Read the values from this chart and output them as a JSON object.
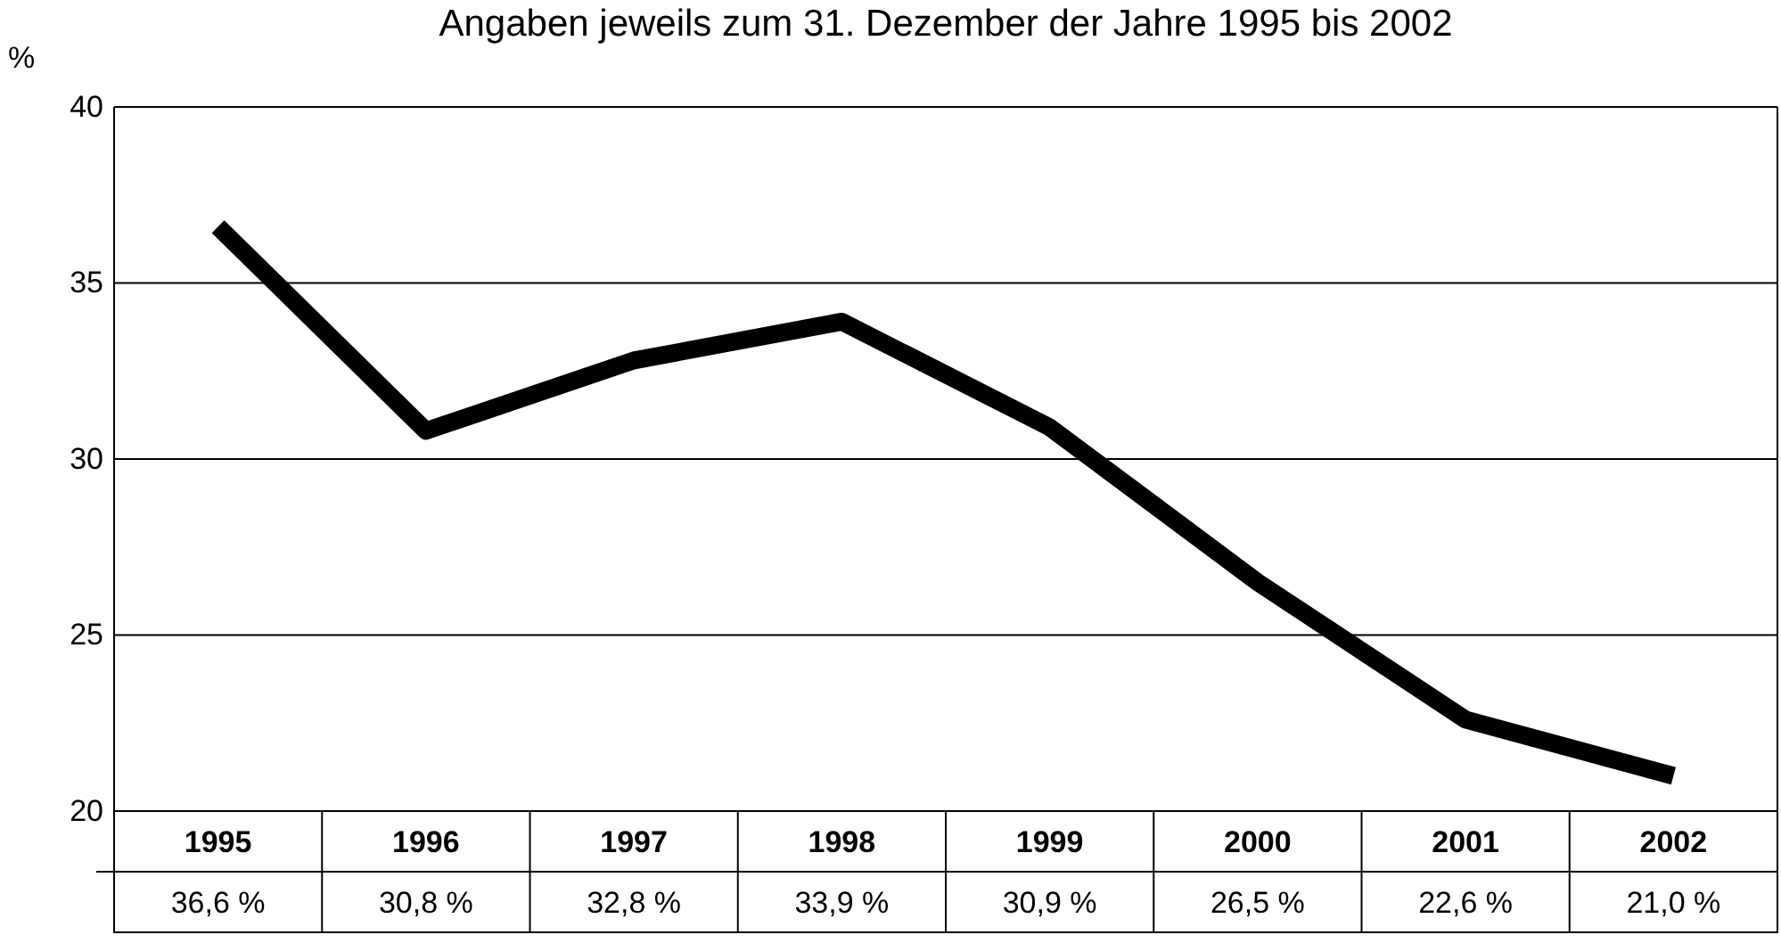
{
  "chart_data": {
    "type": "line",
    "title": "Angaben jeweils zum 31. Dezember der Jahre 1995 bis 2002",
    "ylabel": "%",
    "categories": [
      "1995",
      "1996",
      "1997",
      "1998",
      "1999",
      "2000",
      "2001",
      "2002"
    ],
    "series": [
      {
        "color": "#000000",
        "values": [
          36.6,
          30.8,
          32.8,
          33.9,
          30.9,
          26.5,
          22.6,
          21.0
        ]
      }
    ],
    "value_labels": [
      "36,6 %",
      "30,8 %",
      "32,8 %",
      "33,9 %",
      "30,9 %",
      "26,5 %",
      "22,6 %",
      "21,0 %"
    ],
    "ylim": [
      20,
      40
    ],
    "yticks": [
      20,
      25,
      30,
      35,
      40
    ],
    "grid": "y",
    "marker": "none",
    "line_style": "solid"
  }
}
